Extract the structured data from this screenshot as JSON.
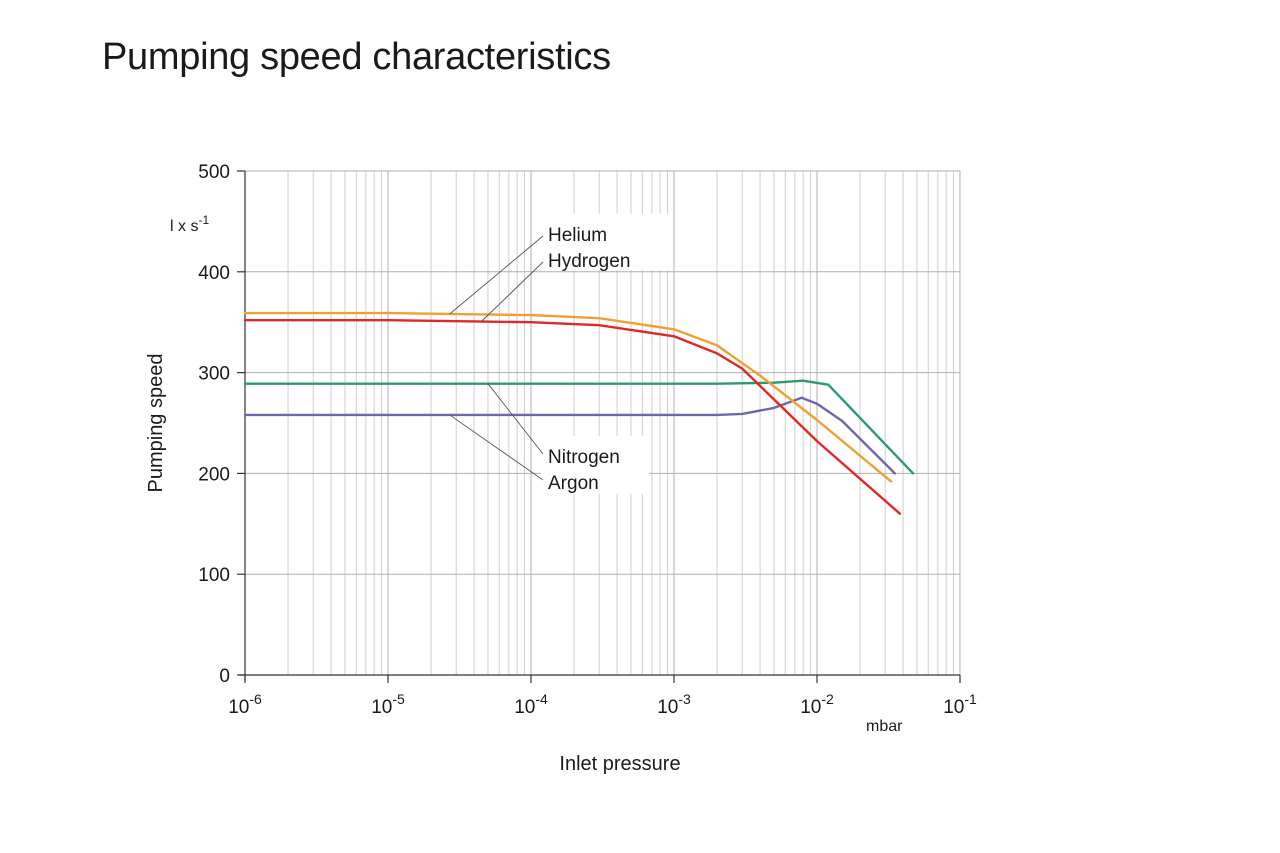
{
  "title": "Pumping speed characteristics",
  "chart_data": {
    "type": "line",
    "title": "Pumping speed characteristics",
    "xlabel": "Inlet pressure",
    "ylabel": "Pumping speed",
    "x_scale": "log",
    "x_unit": "mbar",
    "y_unit": {
      "base": "l x s",
      "sup": "-1"
    },
    "xlim": [
      1e-06,
      0.1
    ],
    "ylim": [
      0,
      500
    ],
    "grid": true,
    "x_ticks": [
      {
        "base": "10",
        "exp": "-6"
      },
      {
        "base": "10",
        "exp": "-5"
      },
      {
        "base": "10",
        "exp": "-4"
      },
      {
        "base": "10",
        "exp": "-3"
      },
      {
        "base": "10",
        "exp": "-2"
      },
      {
        "base": "10",
        "exp": "-1"
      }
    ],
    "y_ticks": [
      "0",
      "100",
      "200",
      "300",
      "400",
      "500"
    ],
    "series": [
      {
        "name": "Helium",
        "color": "#f0a030",
        "x": [
          1e-06,
          1e-05,
          0.0001,
          0.0003,
          0.001,
          0.002,
          0.004,
          0.01,
          0.033
        ],
        "y": [
          359,
          359,
          357,
          354,
          343,
          327,
          297,
          253,
          192
        ]
      },
      {
        "name": "Hydrogen",
        "color": "#e02828",
        "x": [
          1e-06,
          1e-05,
          0.0001,
          0.0003,
          0.001,
          0.002,
          0.003,
          0.01,
          0.038
        ],
        "y": [
          352,
          352,
          350,
          347,
          336,
          319,
          304,
          232,
          160
        ]
      },
      {
        "name": "Nitrogen",
        "color": "#2e9a6a",
        "x": [
          1e-06,
          0.0001,
          0.002,
          0.005,
          0.008,
          0.012,
          0.047
        ],
        "y": [
          289,
          289,
          289,
          290,
          292,
          288,
          200
        ]
      },
      {
        "name": "Argon",
        "color": "#6a6aa8",
        "x": [
          1e-06,
          0.0001,
          0.002,
          0.003,
          0.005,
          0.0078,
          0.01,
          0.015,
          0.035
        ],
        "y": [
          258,
          258,
          258,
          259,
          265,
          275,
          269,
          252,
          200
        ]
      }
    ],
    "annotations": [
      "Helium",
      "Hydrogen",
      "Nitrogen",
      "Argon"
    ]
  }
}
